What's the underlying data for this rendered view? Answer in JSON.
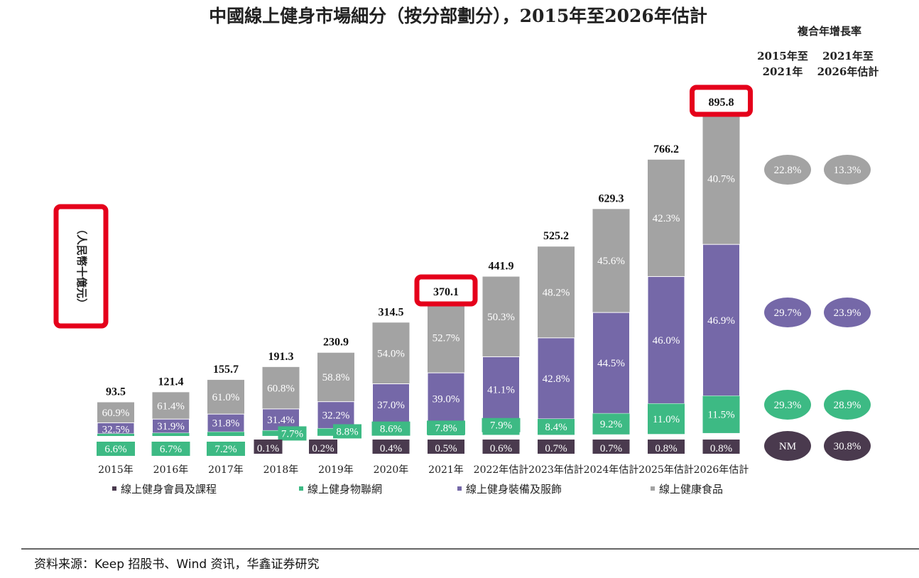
{
  "chart_data": {
    "type": "bar",
    "stacked": true,
    "title": "中國線上健身市場細分（按分部劃分），2015年至2026年估計",
    "ylabel": "（人民幣十億元）",
    "categories": [
      "2015年",
      "2016年",
      "2017年",
      "2018年",
      "2019年",
      "2020年",
      "2021年",
      "2022年估計",
      "2023年估計",
      "2024年估計",
      "2025年估計",
      "2026年估計"
    ],
    "totals": [
      93.5,
      121.4,
      155.7,
      191.3,
      230.9,
      314.5,
      370.1,
      441.9,
      525.2,
      629.3,
      766.2,
      895.8
    ],
    "total_labels": [
      "93.5",
      "121.4",
      "155.7",
      "191.3",
      "230.9",
      "314.5",
      "370.1",
      "441.9",
      "525.2",
      "629.3",
      "766.2",
      "895.8"
    ],
    "series": [
      {
        "name": "線上健身會員及課程",
        "color": "#4a3a4e",
        "shares": [
          0.0,
          0.0,
          0.0,
          0.1,
          0.2,
          0.4,
          0.5,
          0.6,
          0.7,
          0.7,
          0.8,
          0.8
        ],
        "labels": [
          "",
          "",
          "",
          "0.1%",
          "0.2%",
          "0.4%",
          "0.5%",
          "0.6%",
          "0.7%",
          "0.7%",
          "0.8%",
          "0.8%"
        ]
      },
      {
        "name": "線上健身物聯網",
        "color": "#3dba84",
        "shares": [
          6.6,
          6.7,
          7.2,
          7.7,
          8.8,
          8.6,
          7.8,
          7.9,
          8.4,
          9.2,
          11.0,
          11.5
        ],
        "labels": [
          "6.6%",
          "6.7%",
          "7.2%",
          "7.7%",
          "8.8%",
          "8.6%",
          "7.8%",
          "7.9%",
          "8.4%",
          "9.2%",
          "11.0%",
          "11.5%"
        ]
      },
      {
        "name": "線上健身裝備及服飾",
        "color": "#7568a8",
        "shares": [
          32.5,
          31.9,
          31.8,
          31.4,
          32.2,
          37.0,
          39.0,
          41.1,
          42.8,
          44.5,
          46.0,
          46.9
        ],
        "labels": [
          "32.5%",
          "31.9%",
          "31.8%",
          "31.4%",
          "32.2%",
          "37.0%",
          "39.0%",
          "41.1%",
          "42.8%",
          "44.5%",
          "46.0%",
          "46.9%"
        ]
      },
      {
        "name": "線上健康食品",
        "color": "#a3a3a3",
        "shares": [
          60.9,
          61.4,
          61.0,
          60.8,
          58.8,
          54.0,
          52.7,
          50.3,
          48.2,
          45.6,
          42.3,
          40.7
        ],
        "labels": [
          "60.9%",
          "61.4%",
          "61.0%",
          "60.8%",
          "58.8%",
          "54.0%",
          "52.7%",
          "50.3%",
          "48.2%",
          "45.6%",
          "42.3%",
          "40.7%"
        ]
      }
    ],
    "highlighted_categories": [
      "2021年",
      "2026年估計"
    ],
    "cagr": {
      "title": "複合年增長率",
      "columns": [
        [
          "2015年至",
          "2021年"
        ],
        [
          "2021年至",
          "2026年估計"
        ]
      ],
      "rows": [
        {
          "series": "線上健康食品",
          "values": [
            "22.8%",
            "13.3%"
          ],
          "color": "#a3a3a3"
        },
        {
          "series": "線上健身裝備及服飾",
          "values": [
            "29.7%",
            "23.9%"
          ],
          "color": "#7568a8"
        },
        {
          "series": "線上健身物聯網",
          "values": [
            "29.3%",
            "28.9%"
          ],
          "color": "#3dba84"
        },
        {
          "series": "線上健身會員及課程",
          "values": [
            "NM",
            "30.8%"
          ],
          "color": "#4a3a4e"
        }
      ]
    }
  },
  "source": "资料来源：Keep 招股书、Wind 资讯，华鑫证券研究",
  "colors": {
    "highlight": "#e5001b",
    "text": "#222222",
    "rule": "#333333"
  }
}
